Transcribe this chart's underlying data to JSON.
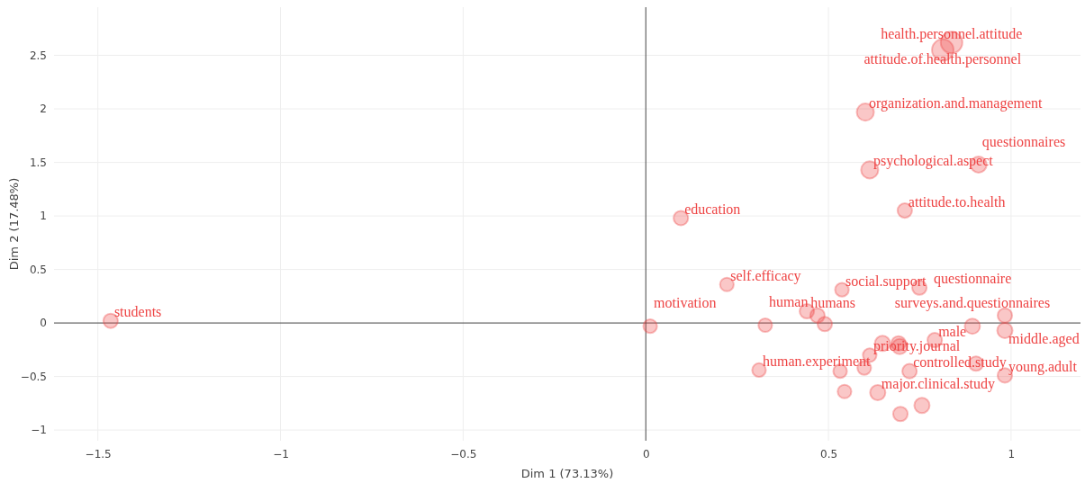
{
  "chart_data": {
    "type": "bubble",
    "xlabel": "Dim 1 (73.13%)",
    "ylabel": "Dim 2 (17.48%)",
    "x": [
      -1.465,
      0.012,
      0.096,
      0.222,
      0.327,
      0.441,
      0.47,
      0.49,
      0.537,
      0.749,
      0.601,
      0.613,
      0.911,
      0.709,
      0.837,
      0.813,
      0.648,
      0.692,
      0.695,
      0.791,
      0.894,
      0.983,
      0.983,
      0.904,
      0.983,
      0.31,
      0.532,
      0.598,
      0.613,
      0.722,
      0.544,
      0.635,
      0.756,
      0.697
    ],
    "values": [
      0.02,
      -0.03,
      0.98,
      0.36,
      -0.02,
      0.11,
      0.07,
      -0.01,
      0.31,
      0.33,
      1.97,
      1.43,
      1.48,
      1.05,
      2.62,
      2.55,
      -0.19,
      -0.19,
      -0.22,
      -0.16,
      -0.03,
      0.07,
      -0.07,
      -0.38,
      -0.49,
      -0.44,
      -0.45,
      -0.42,
      -0.3,
      -0.45,
      -0.64,
      -0.65,
      -0.77,
      -0.85
    ],
    "sizes": [
      0.45,
      0.4,
      0.45,
      0.4,
      0.4,
      0.45,
      0.45,
      0.45,
      0.4,
      0.45,
      0.63,
      0.63,
      0.56,
      0.45,
      1,
      1,
      0.5,
      0.45,
      0.5,
      0.45,
      0.5,
      0.45,
      0.5,
      0.45,
      0.45,
      0.4,
      0.4,
      0.4,
      0.4,
      0.45,
      0.4,
      0.5,
      0.5,
      0.45
    ],
    "color": "#ee4444",
    "xlim": [
      -1.62,
      1.19
    ],
    "ylim": [
      -1.1,
      2.95
    ],
    "xticks": [
      {
        "value": -1.5,
        "label": "−1.5"
      },
      {
        "value": -1,
        "label": "−1"
      },
      {
        "value": -0.5,
        "label": "−0.5"
      },
      0,
      0.5,
      1
    ],
    "yticks": [
      {
        "value": -1,
        "label": "−1"
      },
      {
        "value": -0.5,
        "label": "−0.5"
      },
      0,
      0.5,
      1,
      1.5,
      2,
      2.5
    ],
    "grid": true,
    "annotations": [
      {
        "text": "students",
        "x": -1.465,
        "y": 0.02
      },
      {
        "text": "motivation",
        "x": 0.012,
        "y": -0.03
      },
      {
        "text": "education",
        "x": 0.096,
        "y": 0.98
      },
      {
        "text": "self.efficacy",
        "x": 0.222,
        "y": 0.36
      },
      {
        "text": "human",
        "x": 0.327,
        "y": -0.02
      },
      {
        "text": "humans",
        "x": 0.441,
        "y": 0.11
      },
      {
        "text": "social.support",
        "x": 0.537,
        "y": 0.31
      },
      {
        "text": "questionnaire",
        "x": 0.749,
        "y": 0.33
      },
      {
        "text": "organization.and.management",
        "x": 0.601,
        "y": 1.97
      },
      {
        "text": "psychological.aspect",
        "x": 0.613,
        "y": 1.43
      },
      {
        "text": "questionnaires",
        "x": 0.911,
        "y": 1.48
      },
      {
        "text": "attitude.to.health",
        "x": 0.709,
        "y": 1.05
      },
      {
        "text": "health.personnel.attitude",
        "x": 0.837,
        "y": 2.62
      },
      {
        "text": "attitude.of.health.personnel",
        "x": 0.813,
        "y": 2.55
      },
      {
        "text": "surveys.and.questionnaires",
        "x": 0.894,
        "y": -0.03
      },
      {
        "text": "male",
        "x": 0.791,
        "y": -0.16
      },
      {
        "text": "middle.aged",
        "x": 0.983,
        "y": 0.07
      },
      {
        "text": "young.adult",
        "x": 0.983,
        "y": -0.49
      },
      {
        "text": "human.experiment",
        "x": 0.31,
        "y": -0.44
      },
      {
        "text": "priority.journal",
        "x": 0.613,
        "y": -0.3
      },
      {
        "text": "controlled.study",
        "x": 0.722,
        "y": -0.45
      },
      {
        "text": "major.clinical.study",
        "x": 0.635,
        "y": -0.65
      }
    ]
  }
}
